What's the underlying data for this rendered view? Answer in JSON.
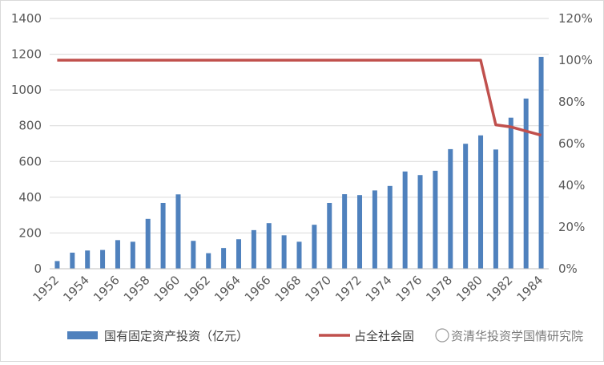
{
  "chart_data": {
    "type": "bar",
    "x": [
      1952,
      1953,
      1954,
      1955,
      1956,
      1957,
      1958,
      1959,
      1960,
      1961,
      1962,
      1963,
      1964,
      1965,
      1966,
      1967,
      1968,
      1969,
      1970,
      1971,
      1972,
      1973,
      1974,
      1975,
      1976,
      1977,
      1978,
      1979,
      1980,
      1981,
      1982,
      1983,
      1984
    ],
    "x_tick_labels": [
      "1952",
      "1954",
      "1956",
      "1958",
      "1960",
      "1962",
      "1964",
      "1966",
      "1968",
      "1970",
      "1972",
      "1974",
      "1976",
      "1978",
      "1980",
      "1982",
      "1984"
    ],
    "series": [
      {
        "name": "国有固定资产投资（亿元）",
        "type": "bar",
        "axis": "left",
        "color": "#4f81bd",
        "values": [
          43,
          90,
          102,
          105,
          160,
          151,
          279,
          368,
          416,
          156,
          87,
          116,
          165,
          216,
          255,
          187,
          151,
          246,
          368,
          417,
          412,
          438,
          463,
          544,
          524,
          548,
          669,
          699,
          746,
          667,
          845,
          952,
          1185
        ]
      },
      {
        "name": "占全社会固定资产投资比重",
        "type": "line",
        "axis": "right",
        "color": "#c0504d",
        "values": [
          1,
          1,
          1,
          1,
          1,
          1,
          1,
          1,
          1,
          1,
          1,
          1,
          1,
          1,
          1,
          1,
          1,
          1,
          1,
          1,
          1,
          1,
          1,
          1,
          1,
          1,
          1,
          1,
          1,
          0.69,
          0.68,
          0.66,
          0.64
        ]
      }
    ],
    "y_left": {
      "range": [
        0,
        1400
      ],
      "ticks": [
        "0",
        "200",
        "400",
        "600",
        "800",
        "1000",
        "1200",
        "1400"
      ]
    },
    "y_right": {
      "range": [
        0,
        1.2
      ],
      "ticks": [
        "0%",
        "20%",
        "40%",
        "60%",
        "80%",
        "100%",
        "120%"
      ]
    },
    "legend": {
      "placement": "bottom",
      "items": [
        "国有固定资产投资（亿元）",
        "占全社会固"
      ]
    },
    "watermark": "资清华投资学国情研究院",
    "grid": "horizontal"
  }
}
